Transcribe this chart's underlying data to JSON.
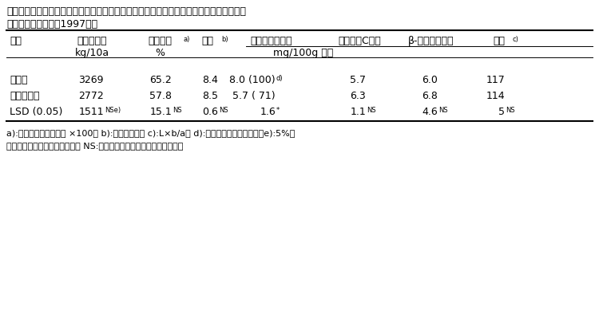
{
  "title_line1": "表１　茨城県のにんじんの窒素施肥基準の半分を牛糞堆肥で代替栽培した場合（牛堆代替",
  "title_line2": "区）の収量・品質（1997年）",
  "header_row1": [
    "処理",
    "可販品収量",
    "可販品率     ",
    "糖度",
    "硝酸態窒素含量",
    "ビタミンC含量",
    "β-カロテン含量",
    "色調"
  ],
  "header_row1_superscripts": [
    "",
    "",
    "a)",
    "b)",
    "",
    "",
    "",
    "c)"
  ],
  "header_row2": [
    "",
    "kg/10a",
    "%",
    "",
    "mg/100g 生重",
    "",
    "",
    ""
  ],
  "data_rows": [
    [
      "標準区",
      "3269",
      "65.2",
      "8.4",
      "8.0 (100)",
      "5.7",
      "6.0",
      "117"
    ],
    [
      "牛堆代替区",
      "2772",
      "57.8",
      "8.5",
      "5.7 ( 71)",
      "6.3",
      "6.8",
      "114"
    ],
    [
      "LSD (0.05)",
      "1511",
      "15.1",
      "0.6",
      "1.6",
      "1.1",
      "4.6",
      "5"
    ]
  ],
  "data_superscripts": [
    [
      "",
      "",
      "",
      "",
      "d)",
      "",
      "",
      ""
    ],
    [
      "",
      "",
      "",
      "",
      "",
      "",
      "",
      ""
    ],
    [
      "",
      "NSe)",
      "NS",
      "NS",
      "*",
      "NS",
      "NS",
      "NS"
    ]
  ],
  "footnote": "a):可販品本数／全本数 ×100。 b):ブリックス。 c):L×b/a。 d):括弧内は相対値を示す。e):5%水\n準で有意差があることを示す。 NS:有意差は認められないことを示す。",
  "bg_color": "#ffffff",
  "text_color": "#000000",
  "font_size": 9,
  "title_font_size": 9
}
